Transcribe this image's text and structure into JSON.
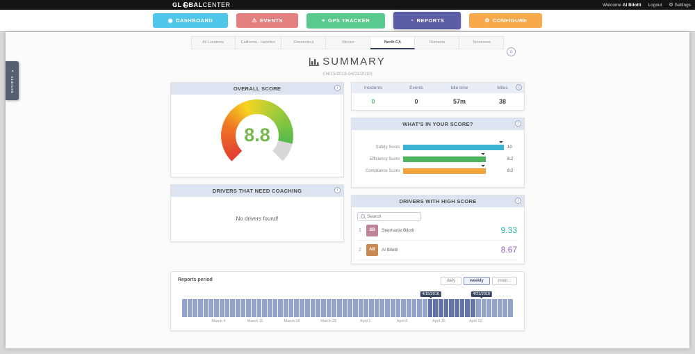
{
  "topbar": {
    "logo_gl": "GL",
    "logo_bal": "BAL",
    "logo_center": "CENTER",
    "welcome": "Welcome",
    "user": "Al Bilotti",
    "logout": "Logout",
    "settings_glyph": "⚙",
    "settings": "Settings"
  },
  "nav": {
    "items": [
      {
        "label": "DASHBOARD",
        "glyph": "◉",
        "color": "#4fc6ea"
      },
      {
        "label": "EVENTS",
        "glyph": "⚠",
        "color": "#e3807f"
      },
      {
        "label": "GPS TRACKER",
        "glyph": "⌖",
        "color": "#59c98c"
      },
      {
        "label": "REPORTS",
        "glyph": "◔",
        "color": "#5b5ea6"
      },
      {
        "label": "CONFIGURE",
        "glyph": "⚙",
        "color": "#f7a94b"
      }
    ]
  },
  "sidebar": {
    "tab_glyph": "◔",
    "tab_label": "REPORTS"
  },
  "tabs": {
    "items": [
      {
        "label": "All Locations"
      },
      {
        "label": "California - Hamilton"
      },
      {
        "label": "Connecticut"
      },
      {
        "label": "Mexico"
      },
      {
        "label": "North CA"
      },
      {
        "label": "Romania"
      },
      {
        "label": "Tennessee"
      }
    ]
  },
  "menu_glyph": "≡",
  "page": {
    "title": "SUMMARY",
    "subtitle": "(04/15/2018-04/21/2018)"
  },
  "overall_score": {
    "header": "OVERALL SCORE",
    "value": "8.8",
    "value_color": "#76b84e"
  },
  "stats": {
    "header": [
      "Incidents",
      "Events",
      "Idle time",
      "Miles"
    ],
    "values": [
      {
        "text": "0",
        "color": "#53b97c"
      },
      {
        "text": "0",
        "color": "#444444"
      },
      {
        "text": "57m",
        "color": "#444444"
      },
      {
        "text": "38",
        "color": "#444444"
      }
    ]
  },
  "score_breakdown": {
    "header": "WHAT'S IN YOUR SCORE?",
    "rows": [
      {
        "label": "Safety Score",
        "value": "10",
        "pct": 100,
        "color": "#3db3d4"
      },
      {
        "label": "Efficiency Score",
        "value": "8.2",
        "pct": 82,
        "color": "#4db45e"
      },
      {
        "label": "Compliance Score",
        "value": "8.2",
        "pct": 82,
        "color": "#f2a33c"
      }
    ]
  },
  "coaching": {
    "header": "DRIVERS THAT NEED COACHING",
    "empty_message": "No drivers found!"
  },
  "high_score": {
    "header": "DRIVERS WITH HIGH SCORE",
    "search_placeholder": "Search",
    "drivers": [
      {
        "rank": "1",
        "name": "Stephanie Bilotti",
        "initials": "SB",
        "avatar_color": "#c08497",
        "score": "9.33",
        "score_color": "#2ab5b0"
      },
      {
        "rank": "2",
        "name": "Al Bilotti",
        "initials": "AB",
        "avatar_color": "#c98a52",
        "score": "8.67",
        "score_color": "#9a5fb5"
      }
    ]
  },
  "reports_period": {
    "title": "Reports period",
    "buttons": [
      {
        "label": "daily"
      },
      {
        "label": "weekly"
      },
      {
        "label": "mont..."
      }
    ],
    "tooltips": [
      {
        "label": "4/15/2018",
        "pos_pct": 74.5
      },
      {
        "label": "4/21/2018",
        "pos_pct": 89.5
      }
    ],
    "chart": {
      "type": "bar",
      "bar_count": 62,
      "bar_color": "#93a3cd",
      "selected_color": "#6374ab",
      "selected_start_pct": 74.5,
      "selected_end_pct": 89.5,
      "ticks": [
        {
          "label": "March 4",
          "pos_pct": 11.0
        },
        {
          "label": "March 11",
          "pos_pct": 22.1
        },
        {
          "label": "March 18",
          "pos_pct": 33.2
        },
        {
          "label": "March 25",
          "pos_pct": 44.3
        },
        {
          "label": "April 1",
          "pos_pct": 55.4
        },
        {
          "label": "April 8",
          "pos_pct": 66.5
        },
        {
          "label": "April 15",
          "pos_pct": 77.6
        },
        {
          "label": "April 22",
          "pos_pct": 88.7
        }
      ]
    }
  }
}
